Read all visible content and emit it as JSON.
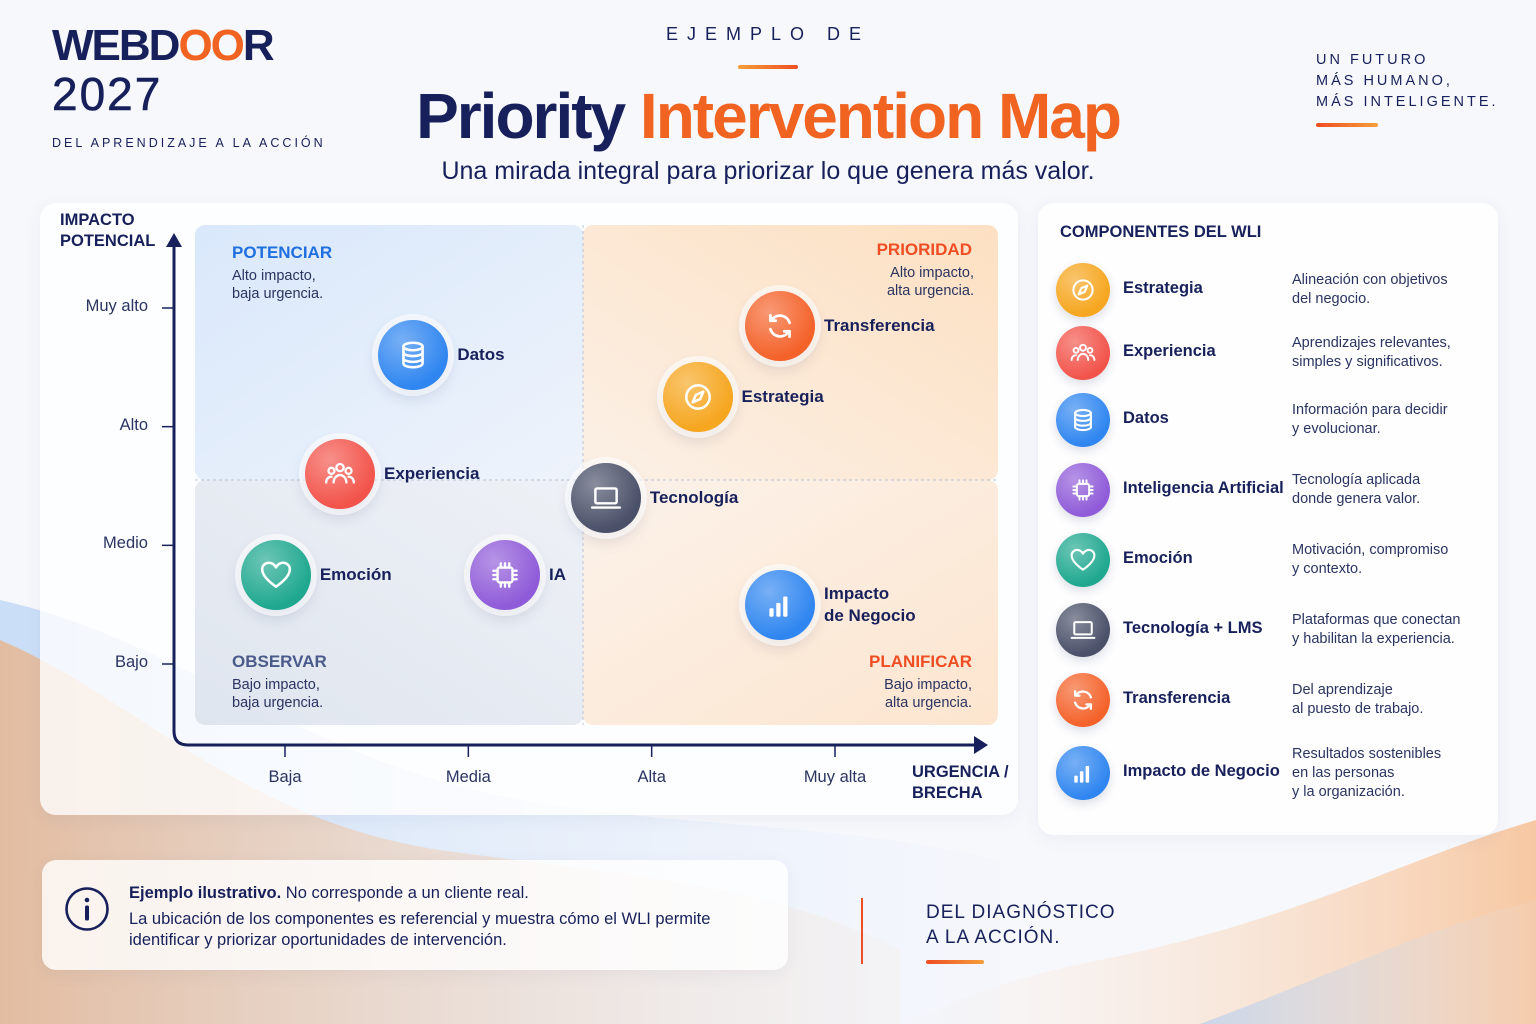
{
  "brand": {
    "name_pre": "WEBD",
    "name_oo": "OO",
    "name_post": "R",
    "year": "2027",
    "tagline": "DEL APRENDIZAJE A LA ACCIÓN"
  },
  "header": {
    "eyebrow": "EJEMPLO DE",
    "title_part1": "Priority",
    "title_part2": "Intervention Map",
    "subtitle": "Una mirada integral para priorizar lo que genera más valor."
  },
  "motto": {
    "line1": "UN FUTURO",
    "line2": "MÁS HUMANO,",
    "line3": "MÁS INTELIGENTE."
  },
  "chart": {
    "y_axis_title_1": "IMPACTO",
    "y_axis_title_2": "POTENCIAL",
    "x_axis_title_1": "URGENCIA /",
    "x_axis_title_2": "BRECHA",
    "quadrants": {
      "top_left": {
        "label": "POTENCIAR",
        "desc1": "Alto impacto,",
        "desc2": "baja urgencia.",
        "color": "#1f6fe0"
      },
      "top_right": {
        "label": "PRIORIDAD",
        "desc1": "Alto impacto,",
        "desc2": "alta urgencia.",
        "color": "#ef4d23"
      },
      "bottom_left": {
        "label": "OBSERVAR",
        "desc1": "Bajo impacto,",
        "desc2": "baja urgencia.",
        "color": "#4a5a8a"
      },
      "bottom_right": {
        "label": "PLANIFICAR",
        "desc1": "Bajo impacto,",
        "desc2": "alta urgencia.",
        "color": "#ef4d23"
      }
    }
  },
  "chart_data": {
    "type": "scatter",
    "title": "Priority Intervention Map",
    "xlabel": "URGENCIA / BRECHA",
    "ylabel": "IMPACTO POTENCIAL",
    "x_ticks": [
      "Baja",
      "Media",
      "Alta",
      "Muy alta"
    ],
    "y_ticks": [
      "Bajo",
      "Medio",
      "Alto",
      "Muy alto"
    ],
    "xlim": [
      1,
      4
    ],
    "ylim": [
      1,
      4
    ],
    "grid": false,
    "points": [
      {
        "name": "Datos",
        "label2": "",
        "x": 1.7,
        "y": 3.6,
        "icon": "database-icon",
        "color": "#2f86f0"
      },
      {
        "name": "Transferencia",
        "label2": "",
        "x": 3.7,
        "y": 3.85,
        "icon": "refresh-icon",
        "color": "#f4622a"
      },
      {
        "name": "Estrategia",
        "label2": "",
        "x": 3.25,
        "y": 3.25,
        "icon": "compass-icon",
        "color": "#f6a61f"
      },
      {
        "name": "Experiencia",
        "label2": "",
        "x": 1.3,
        "y": 2.6,
        "icon": "people-icon",
        "color": "#f2544b"
      },
      {
        "name": "Tecnología",
        "label2": "",
        "x": 2.75,
        "y": 2.4,
        "icon": "laptop-icon",
        "color": "#4a5068"
      },
      {
        "name": "Emoción",
        "label2": "",
        "x": 0.95,
        "y": 1.75,
        "icon": "heart-icon",
        "color": "#1fa88f"
      },
      {
        "name": "IA",
        "label2": "",
        "x": 2.2,
        "y": 1.75,
        "icon": "chip-icon",
        "color": "#8f5bd8"
      },
      {
        "name": "Impacto",
        "label2": "de Negocio",
        "x": 3.7,
        "y": 1.5,
        "icon": "bar-chart-icon",
        "color": "#2f86f0"
      }
    ]
  },
  "legend": {
    "title": "COMPONENTES DEL WLI",
    "items": [
      {
        "name": "Estrategia",
        "desc": [
          "Alineación con objetivos",
          "del negocio."
        ],
        "icon": "compass-icon",
        "color": "#f6a61f"
      },
      {
        "name": "Experiencia",
        "desc": [
          "Aprendizajes relevantes,",
          "simples y significativos."
        ],
        "icon": "people-icon",
        "color": "#f2544b"
      },
      {
        "name": "Datos",
        "desc": [
          "Información para decidir",
          "y evolucionar."
        ],
        "icon": "database-icon",
        "color": "#2f86f0"
      },
      {
        "name": "Inteligencia Artificial",
        "desc": [
          "Tecnología aplicada",
          "donde genera valor."
        ],
        "icon": "chip-icon",
        "color": "#8f5bd8"
      },
      {
        "name": "Emoción",
        "desc": [
          "Motivación, compromiso",
          "y contexto."
        ],
        "icon": "heart-icon",
        "color": "#1fa88f"
      },
      {
        "name": "Tecnología + LMS",
        "desc": [
          "Plataformas que conectan",
          "y habilitan la experiencia."
        ],
        "icon": "laptop-icon",
        "color": "#4a5068"
      },
      {
        "name": "Transferencia",
        "desc": [
          "Del aprendizaje",
          "al puesto de trabajo."
        ],
        "icon": "refresh-icon",
        "color": "#f4622a"
      },
      {
        "name": "Impacto de Negocio",
        "desc": [
          "Resultados sostenibles",
          "en las personas",
          "y la organización."
        ],
        "icon": "bar-chart-icon",
        "color": "#2f86f0"
      }
    ]
  },
  "note": {
    "bold": "Ejemplo ilustrativo.",
    "line1_rest": " No corresponde a un cliente real.",
    "line2": "La ubicación de los componentes es referencial y muestra cómo el WLI permite identificar y priorizar oportunidades de intervención."
  },
  "closing": {
    "line1": "DEL DIAGNÓSTICO",
    "line2": "A LA ACCIÓN."
  }
}
